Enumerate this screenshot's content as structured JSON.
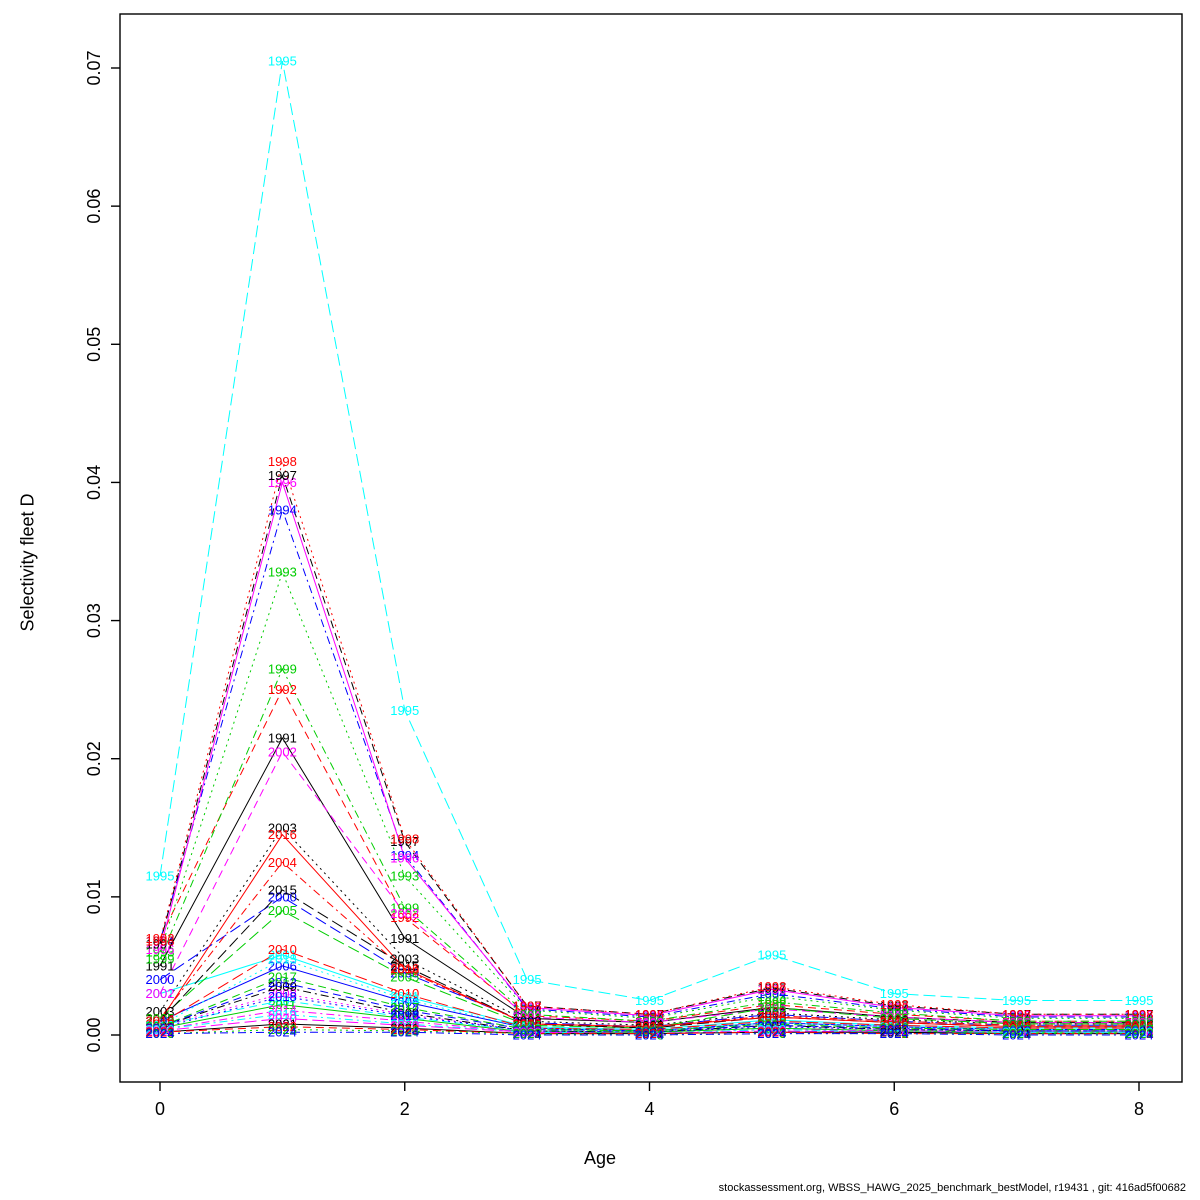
{
  "chart_data": {
    "type": "line",
    "title": "",
    "xlabel": "Age",
    "ylabel": "Selectivity fleet D",
    "xlim": [
      0,
      8
    ],
    "ylim": [
      0,
      0.07
    ],
    "x": [
      0,
      1,
      2,
      3,
      4,
      5,
      6,
      7,
      8
    ],
    "x_ticks": [
      0,
      2,
      4,
      6,
      8
    ],
    "y_ticks": [
      "0.00",
      "0.01",
      "0.02",
      "0.03",
      "0.04",
      "0.05",
      "0.06",
      "0.07"
    ],
    "grid": false,
    "legend": "labels-at-points (year printed at each data point in series color)",
    "palette": [
      "#000000",
      "#ff0000",
      "#00cd00",
      "#0000ff",
      "#00ffff",
      "#ff00ff"
    ],
    "series": [
      {
        "name": "1991",
        "values": [
          0.005,
          0.0215,
          0.007,
          0.0012,
          0.0009,
          0.002,
          0.0013,
          0.0009,
          0.0009
        ]
      },
      {
        "name": "1992",
        "values": [
          0.007,
          0.025,
          0.0085,
          0.0014,
          0.001,
          0.0022,
          0.0015,
          0.001,
          0.001
        ]
      },
      {
        "name": "1993",
        "values": [
          0.006,
          0.0335,
          0.0115,
          0.0018,
          0.0012,
          0.0028,
          0.0018,
          0.0012,
          0.0012
        ]
      },
      {
        "name": "1994",
        "values": [
          0.0068,
          0.038,
          0.013,
          0.0019,
          0.0013,
          0.003,
          0.0019,
          0.0013,
          0.0013
        ]
      },
      {
        "name": "1995",
        "values": [
          0.0115,
          0.0705,
          0.0235,
          0.004,
          0.0025,
          0.0058,
          0.003,
          0.0025,
          0.0025
        ]
      },
      {
        "name": "1996",
        "values": [
          0.0062,
          0.04,
          0.0128,
          0.002,
          0.0014,
          0.0033,
          0.002,
          0.0014,
          0.0014
        ]
      },
      {
        "name": "1997",
        "values": [
          0.0066,
          0.0405,
          0.014,
          0.0021,
          0.0015,
          0.0034,
          0.0021,
          0.0015,
          0.0015
        ]
      },
      {
        "name": "1998",
        "values": [
          0.0068,
          0.0415,
          0.0142,
          0.0021,
          0.0015,
          0.0035,
          0.0022,
          0.0015,
          0.0015
        ]
      },
      {
        "name": "1999",
        "values": [
          0.0055,
          0.0265,
          0.0092,
          0.0015,
          0.001,
          0.0024,
          0.0016,
          0.001,
          0.001
        ]
      },
      {
        "name": "2000",
        "values": [
          0.004,
          0.01,
          0.0045,
          0.0009,
          0.0006,
          0.0015,
          0.001,
          0.0007,
          0.0007
        ]
      },
      {
        "name": "2001",
        "values": [
          0.003,
          0.0058,
          0.0028,
          0.0006,
          0.0004,
          0.0011,
          0.0007,
          0.0005,
          0.0005
        ]
      },
      {
        "name": "2002",
        "values": [
          0.003,
          0.0205,
          0.0088,
          0.0013,
          0.0009,
          0.0019,
          0.0013,
          0.0009,
          0.0009
        ]
      },
      {
        "name": "2003",
        "values": [
          0.0017,
          0.015,
          0.0055,
          0.001,
          0.0007,
          0.0016,
          0.0011,
          0.0008,
          0.0008
        ]
      },
      {
        "name": "2004",
        "values": [
          0.0012,
          0.0125,
          0.0047,
          0.0008,
          0.0006,
          0.0014,
          0.001,
          0.0007,
          0.0007
        ]
      },
      {
        "name": "2005",
        "values": [
          0.0012,
          0.009,
          0.0042,
          0.0007,
          0.0005,
          0.002,
          0.0012,
          0.0008,
          0.0008
        ]
      },
      {
        "name": "2006",
        "values": [
          0.001,
          0.005,
          0.0024,
          0.0005,
          0.0003,
          0.0009,
          0.0006,
          0.0004,
          0.0004
        ]
      },
      {
        "name": "2007",
        "values": [
          0.0007,
          0.0025,
          0.0013,
          0.0003,
          0.0002,
          0.0005,
          0.0003,
          0.0002,
          0.0002
        ]
      },
      {
        "name": "2008",
        "values": [
          0.0006,
          0.003,
          0.0015,
          0.0003,
          0.0002,
          0.0006,
          0.0004,
          0.0003,
          0.0003
        ]
      },
      {
        "name": "2009",
        "values": [
          0.0006,
          0.0035,
          0.0016,
          0.0003,
          0.0002,
          0.0007,
          0.0004,
          0.0003,
          0.0003
        ]
      },
      {
        "name": "2010",
        "values": [
          0.0008,
          0.0062,
          0.003,
          0.0005,
          0.0004,
          0.001,
          0.0007,
          0.0005,
          0.0005
        ]
      },
      {
        "name": "2011",
        "values": [
          0.0005,
          0.0022,
          0.0012,
          0.0002,
          0.0002,
          0.0005,
          0.0003,
          0.0002,
          0.0002
        ]
      },
      {
        "name": "2012",
        "values": [
          0.0006,
          0.0038,
          0.0018,
          0.0004,
          0.0003,
          0.0007,
          0.0005,
          0.0003,
          0.0003
        ]
      },
      {
        "name": "2013",
        "values": [
          0.0007,
          0.0055,
          0.0026,
          0.0005,
          0.0003,
          0.0009,
          0.0006,
          0.0004,
          0.0004
        ]
      },
      {
        "name": "2014",
        "values": [
          0.0004,
          0.0018,
          0.001,
          0.0002,
          0.0001,
          0.0004,
          0.0003,
          0.0002,
          0.0002
        ]
      },
      {
        "name": "2015",
        "values": [
          0.001,
          0.0105,
          0.005,
          0.0008,
          0.0005,
          0.0013,
          0.0009,
          0.0006,
          0.0006
        ]
      },
      {
        "name": "2016",
        "values": [
          0.001,
          0.0145,
          0.0048,
          0.0008,
          0.0006,
          0.0013,
          0.0009,
          0.0006,
          0.0006
        ]
      },
      {
        "name": "2017",
        "values": [
          0.0006,
          0.0042,
          0.002,
          0.0004,
          0.0003,
          0.0008,
          0.0005,
          0.0004,
          0.0004
        ]
      },
      {
        "name": "2018",
        "values": [
          0.0005,
          0.0028,
          0.0014,
          0.0003,
          0.0002,
          0.0006,
          0.0004,
          0.0003,
          0.0003
        ]
      },
      {
        "name": "2019",
        "values": [
          0.0004,
          0.0015,
          0.0008,
          0.0002,
          0.0001,
          0.0004,
          0.0002,
          0.0002,
          0.0002
        ]
      },
      {
        "name": "2020",
        "values": [
          0.0003,
          0.0012,
          0.0007,
          0.0002,
          0.0001,
          0.0003,
          0.0002,
          0.0001,
          0.0001
        ]
      },
      {
        "name": "2021",
        "values": [
          0.0002,
          0.0008,
          0.0005,
          0.0001,
          0.0001,
          0.0002,
          0.0002,
          0.0001,
          0.0001
        ]
      },
      {
        "name": "2022",
        "values": [
          0.0002,
          0.0006,
          0.0004,
          0.0001,
          0.0001,
          0.0002,
          0.0001,
          0.0001,
          0.0001
        ]
      },
      {
        "name": "2023",
        "values": [
          0.0001,
          0.0004,
          0.0003,
          0.0001,
          0.0,
          0.0001,
          0.0001,
          0.0001,
          0.0001
        ]
      },
      {
        "name": "2024",
        "values": [
          0.0001,
          0.0002,
          0.0002,
          0.0,
          0.0,
          0.0001,
          0.0001,
          0.0,
          0.0
        ]
      }
    ]
  },
  "axes": {
    "x_label": "Age",
    "y_label": "Selectivity fleet D"
  },
  "footer": {
    "text": "stockassessment.org, WBSS_HAWG_2025_benchmark_bestModel, r19431 , git: 416ad5f00682"
  }
}
